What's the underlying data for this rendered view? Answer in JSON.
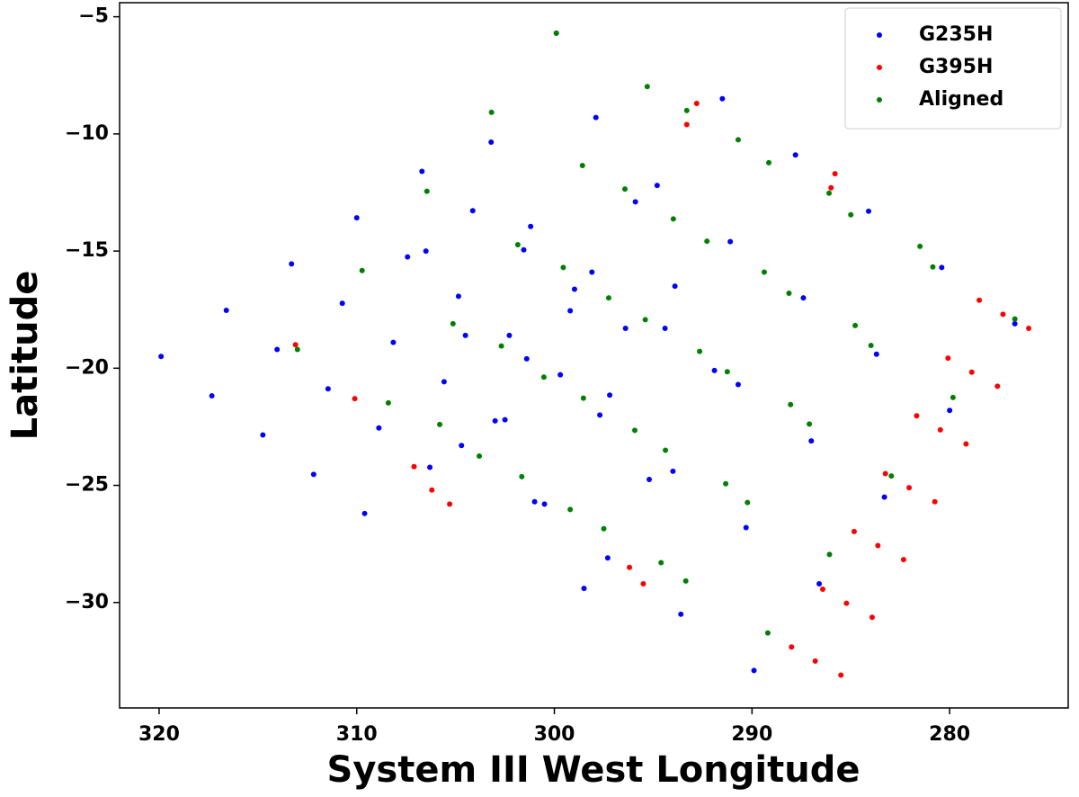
{
  "chart_data": {
    "type": "scatter",
    "x_label": "System III West Longitude",
    "y_label": "Latitude",
    "xlim": [
      322,
      274
    ],
    "ylim": [
      -34.5,
      -4.4
    ],
    "xticks": [
      320,
      310,
      300,
      290,
      280
    ],
    "yticks": [
      {
        "value": -5,
        "label": "−5"
      },
      {
        "value": -10,
        "label": "−10"
      },
      {
        "value": -15,
        "label": "−15"
      },
      {
        "value": -20,
        "label": "−20"
      },
      {
        "value": -25,
        "label": "−25"
      },
      {
        "value": -30,
        "label": "−30"
      }
    ],
    "legend": "upper right",
    "series": [
      {
        "name": "G235H",
        "color": "#0000ff",
        "x": [
          319.9,
          316.6,
          313.3,
          310.0,
          306.7,
          317.33,
          314.03,
          310.73,
          307.43,
          304.13,
          314.75,
          311.45,
          308.15,
          304.85,
          301.55,
          312.18,
          308.88,
          305.58,
          302.28,
          298.98,
          309.6,
          306.3,
          303.0,
          299.7,
          296.4,
          304.7,
          301.4,
          298.1,
          294.8,
          291.5,
          301.0,
          297.7,
          294.4,
          291.1,
          287.8,
          297.3,
          294.0,
          290.7,
          287.4,
          284.1,
          293.6,
          290.3,
          287.0,
          283.7,
          280.4,
          289.9,
          286.6,
          283.3,
          280.0,
          276.7,
          306.5,
          303.2,
          299.9,
          304.5,
          301.2,
          297.9,
          302.5,
          299.2,
          295.9,
          300.5,
          297.2,
          293.9,
          298.5,
          295.2,
          291.9
        ],
        "y": [
          -19.5,
          -17.53,
          -15.55,
          -13.58,
          -11.6,
          -21.18,
          -19.2,
          -17.23,
          -15.25,
          -13.28,
          -22.85,
          -20.88,
          -18.9,
          -16.93,
          -14.95,
          -24.53,
          -22.55,
          -20.58,
          -18.6,
          -16.63,
          -26.2,
          -24.23,
          -22.25,
          -20.28,
          -18.3,
          -23.3,
          -19.6,
          -15.9,
          -12.2,
          -8.5,
          -25.7,
          -22.0,
          -18.3,
          -14.6,
          -10.9,
          -28.1,
          -24.4,
          -20.7,
          -17.0,
          -13.3,
          -30.5,
          -26.8,
          -23.1,
          -19.4,
          -15.7,
          -32.9,
          -29.2,
          -25.5,
          -21.8,
          -18.1,
          -15,
          -10.35,
          -5.7,
          -18.6,
          -13.95,
          -9.3,
          -22.2,
          -17.55,
          -12.9,
          -25.8,
          -21.15,
          -16.5,
          -29.4,
          -24.75,
          -20.1
        ]
      },
      {
        "name": "G395H",
        "color": "#ff0000",
        "x": [
          276.0,
          277.58,
          279.17,
          280.75,
          282.33,
          283.92,
          285.5,
          277.3,
          278.88,
          280.47,
          282.05,
          283.63,
          285.22,
          286.8,
          278.5,
          280.08,
          281.67,
          283.25,
          284.83,
          286.42,
          288.0,
          307.1,
          306.2,
          305.3,
          296.2,
          295.5,
          292.8,
          293.3,
          285.8,
          286.0,
          313.1,
          310.1
        ],
        "y": [
          -18.3,
          -20.77,
          -23.23,
          -25.7,
          -28.17,
          -30.63,
          -33.1,
          -17.7,
          -20.17,
          -22.63,
          -25.1,
          -27.57,
          -30.03,
          -32.5,
          -17.1,
          -19.57,
          -22.03,
          -24.5,
          -26.97,
          -29.43,
          -31.9,
          -24.2,
          -25.2,
          -25.8,
          -28.5,
          -29.2,
          -8.7,
          -9.6,
          -11.7,
          -12.3,
          -19.0,
          -21.3
        ]
      },
      {
        "name": "Aligned",
        "color": "#008000",
        "x": [
          313.0,
          309.73,
          306.45,
          303.18,
          299.9,
          308.4,
          305.13,
          301.85,
          298.58,
          295.3,
          303.8,
          300.53,
          297.25,
          293.98,
          290.7,
          299.2,
          295.93,
          292.65,
          289.38,
          286.1,
          294.6,
          291.33,
          288.05,
          284.78,
          281.5,
          305.8,
          302.68,
          299.55,
          296.43,
          293.3,
          301.65,
          298.53,
          295.4,
          292.28,
          289.15,
          297.5,
          294.38,
          291.25,
          288.13,
          285.0,
          293.35,
          290.23,
          287.1,
          283.98,
          280.85,
          289.2,
          286.08,
          282.95,
          279.83,
          276.7
        ],
        "y": [
          -19.2,
          -15.83,
          -12.45,
          -9.08,
          -5.7,
          -21.48,
          -18.1,
          -14.73,
          -11.35,
          -7.98,
          -23.75,
          -20.38,
          -17.0,
          -13.63,
          -10.25,
          -26.03,
          -22.65,
          -19.28,
          -15.9,
          -12.53,
          -28.3,
          -24.93,
          -21.55,
          -18.18,
          -14.8,
          -22.4,
          -19.05,
          -15.7,
          -12.35,
          -9.0,
          -24.63,
          -21.28,
          -17.93,
          -14.58,
          -11.23,
          -26.85,
          -23.5,
          -20.15,
          -16.8,
          -13.45,
          -29.08,
          -25.73,
          -22.38,
          -19.03,
          -15.68,
          -31.3,
          -27.95,
          -24.6,
          -21.25,
          -17.9
        ]
      }
    ]
  }
}
